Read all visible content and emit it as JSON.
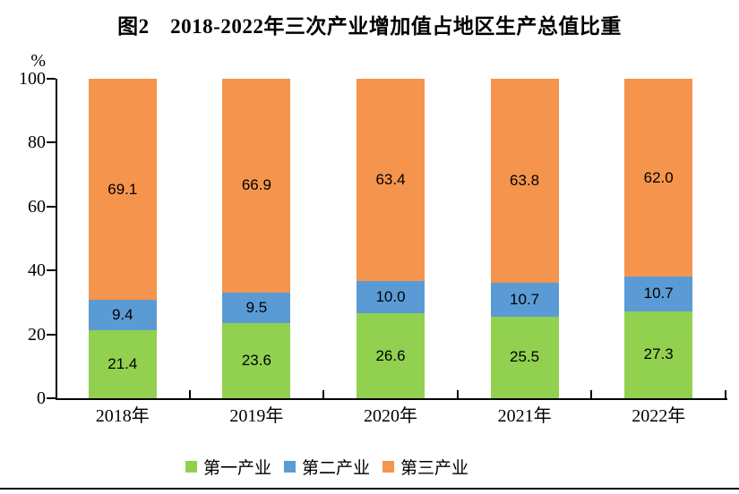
{
  "figure": {
    "title": "图2　2018-2022年三次产业增加值占地区生产总值比重",
    "y_unit_label": "%"
  },
  "chart_data": {
    "type": "bar",
    "stacked": true,
    "title": "图2　2018-2022年三次产业增加值占地区生产总值比重",
    "categories": [
      "2018年",
      "2019年",
      "2020年",
      "2021年",
      "2022年"
    ],
    "series": [
      {
        "name": "第一产业",
        "color": "#92D050",
        "values": [
          21.4,
          23.6,
          26.6,
          25.5,
          27.3
        ]
      },
      {
        "name": "第二产业",
        "color": "#5B9BD5",
        "values": [
          9.4,
          9.5,
          10.0,
          10.7,
          10.7
        ]
      },
      {
        "name": "第三产业",
        "color": "#F5944D",
        "values": [
          69.1,
          66.9,
          63.4,
          63.8,
          62.0
        ]
      }
    ],
    "ylabel": "%",
    "ylim": [
      0,
      100
    ],
    "yticks": [
      0,
      20,
      40,
      60,
      80,
      100
    ],
    "grid": false,
    "legend_position": "bottom",
    "data_labels": "center",
    "axis_color": "#000000"
  }
}
